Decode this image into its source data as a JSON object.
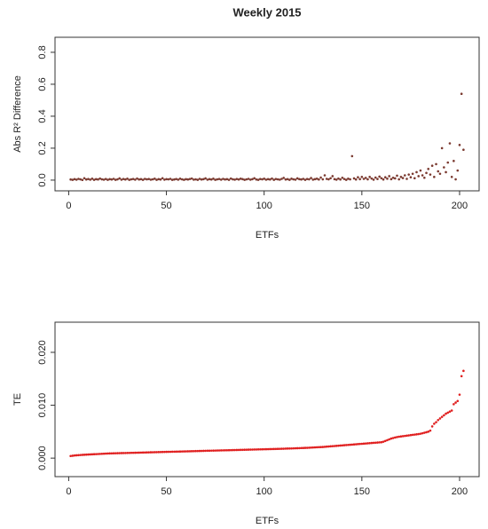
{
  "chart_data": [
    {
      "type": "scatter",
      "title": "Weekly 2015",
      "xlabel": "ETFs",
      "ylabel": "Abs R² Difference",
      "color": "#7b3a30",
      "xlim": [
        -7,
        210
      ],
      "ylim": [
        -0.067,
        0.894
      ],
      "xticks": [
        0,
        50,
        100,
        150,
        200
      ],
      "yticks": [
        {
          "value": 0,
          "label": "0.0"
        },
        {
          "value": 0.2,
          "label": "0.2"
        },
        {
          "value": 0.4,
          "label": "0.4"
        },
        {
          "value": 0.6,
          "label": "0.6"
        },
        {
          "value": 0.8,
          "label": "0.8"
        }
      ],
      "x": [
        1,
        2,
        3,
        4,
        5,
        6,
        7,
        8,
        9,
        10,
        11,
        12,
        13,
        14,
        15,
        16,
        17,
        18,
        19,
        20,
        21,
        22,
        23,
        24,
        25,
        26,
        27,
        28,
        29,
        30,
        31,
        32,
        33,
        34,
        35,
        36,
        37,
        38,
        39,
        40,
        41,
        42,
        43,
        44,
        45,
        46,
        47,
        48,
        49,
        50,
        51,
        52,
        53,
        54,
        55,
        56,
        57,
        58,
        59,
        60,
        61,
        62,
        63,
        64,
        65,
        66,
        67,
        68,
        69,
        70,
        71,
        72,
        73,
        74,
        75,
        76,
        77,
        78,
        79,
        80,
        81,
        82,
        83,
        84,
        85,
        86,
        87,
        88,
        89,
        90,
        91,
        92,
        93,
        94,
        95,
        96,
        97,
        98,
        99,
        100,
        101,
        102,
        103,
        104,
        105,
        106,
        107,
        108,
        109,
        110,
        111,
        112,
        113,
        114,
        115,
        116,
        117,
        118,
        119,
        120,
        121,
        122,
        123,
        124,
        125,
        126,
        127,
        128,
        129,
        130,
        131,
        132,
        133,
        134,
        135,
        136,
        137,
        138,
        139,
        140,
        141,
        142,
        143,
        144,
        145,
        146,
        147,
        148,
        149,
        150,
        151,
        152,
        153,
        154,
        155,
        156,
        157,
        158,
        159,
        160,
        161,
        162,
        163,
        164,
        165,
        166,
        167,
        168,
        169,
        170,
        171,
        172,
        173,
        174,
        175,
        176,
        177,
        178,
        179,
        180,
        181,
        182,
        183,
        184,
        185,
        186,
        187,
        188,
        189,
        190,
        191,
        192,
        193,
        194,
        195,
        196,
        197,
        198,
        199,
        200,
        201,
        202
      ],
      "values": [
        0.004,
        0.002,
        0.006,
        0.003,
        0.008,
        0.005,
        0.001,
        0.012,
        0.004,
        0.007,
        0.003,
        0.009,
        0.002,
        0.006,
        0.004,
        0.01,
        0.005,
        0.003,
        0.007,
        0.002,
        0.006,
        0.004,
        0.008,
        0.002,
        0.005,
        0.011,
        0.003,
        0.007,
        0.004,
        0.009,
        0.002,
        0.005,
        0.007,
        0.003,
        0.01,
        0.004,
        0.006,
        0.002,
        0.008,
        0.005,
        0.007,
        0.003,
        0.005,
        0.009,
        0.002,
        0.006,
        0.004,
        0.012,
        0.003,
        0.006,
        0.005,
        0.008,
        0.002,
        0.004,
        0.007,
        0.003,
        0.009,
        0.005,
        0.002,
        0.006,
        0.004,
        0.007,
        0.01,
        0.003,
        0.005,
        0.002,
        0.008,
        0.004,
        0.006,
        0.011,
        0.003,
        0.006,
        0.004,
        0.009,
        0.002,
        0.005,
        0.007,
        0.003,
        0.008,
        0.004,
        0.006,
        0.002,
        0.01,
        0.005,
        0.003,
        0.007,
        0.004,
        0.009,
        0.006,
        0.002,
        0.005,
        0.008,
        0.003,
        0.006,
        0.012,
        0.004,
        0.002,
        0.007,
        0.005,
        0.009,
        0.003,
        0.006,
        0.004,
        0.01,
        0.002,
        0.007,
        0.005,
        0.003,
        0.008,
        0.014,
        0.004,
        0.006,
        0.002,
        0.009,
        0.005,
        0.003,
        0.011,
        0.006,
        0.004,
        0.008,
        0.002,
        0.007,
        0.005,
        0.013,
        0.003,
        0.006,
        0.009,
        0.004,
        0.016,
        0.005,
        0.03,
        0.008,
        0.005,
        0.012,
        0.025,
        0.006,
        0.003,
        0.01,
        0.004,
        0.015,
        0.007,
        0.002,
        0.009,
        0.005,
        0.15,
        0.011,
        0.004,
        0.018,
        0.006,
        0.02,
        0.008,
        0.014,
        0.005,
        0.02,
        0.01,
        0.003,
        0.016,
        0.007,
        0.022,
        0.012,
        0.004,
        0.018,
        0.009,
        0.025,
        0.006,
        0.015,
        0.011,
        0.028,
        0.005,
        0.02,
        0.013,
        0.03,
        0.008,
        0.035,
        0.018,
        0.04,
        0.012,
        0.05,
        0.025,
        0.06,
        0.03,
        0.015,
        0.045,
        0.07,
        0.035,
        0.09,
        0.02,
        0.1,
        0.055,
        0.04,
        0.2,
        0.08,
        0.05,
        0.11,
        0.23,
        0.02,
        0.12,
        0.005,
        0.06,
        0.22,
        0.54,
        0.19
      ]
    },
    {
      "type": "scatter",
      "xlabel": "ETFs",
      "ylabel": "TE",
      "color": "#e02020",
      "xlim": [
        -7,
        210
      ],
      "ylim": [
        -0.0035,
        0.0257
      ],
      "xticks": [
        0,
        50,
        100,
        150,
        200
      ],
      "yticks": [
        {
          "value": 0,
          "label": "0.000"
        },
        {
          "value": 0.01,
          "label": "0.010"
        },
        {
          "value": 0.02,
          "label": "0.020"
        }
      ],
      "x": [
        1,
        2,
        3,
        4,
        5,
        6,
        7,
        8,
        9,
        10,
        11,
        12,
        13,
        14,
        15,
        16,
        17,
        18,
        19,
        20,
        21,
        22,
        23,
        24,
        25,
        26,
        27,
        28,
        29,
        30,
        31,
        32,
        33,
        34,
        35,
        36,
        37,
        38,
        39,
        40,
        41,
        42,
        43,
        44,
        45,
        46,
        47,
        48,
        49,
        50,
        51,
        52,
        53,
        54,
        55,
        56,
        57,
        58,
        59,
        60,
        61,
        62,
        63,
        64,
        65,
        66,
        67,
        68,
        69,
        70,
        71,
        72,
        73,
        74,
        75,
        76,
        77,
        78,
        79,
        80,
        81,
        82,
        83,
        84,
        85,
        86,
        87,
        88,
        89,
        90,
        91,
        92,
        93,
        94,
        95,
        96,
        97,
        98,
        99,
        100,
        101,
        102,
        103,
        104,
        105,
        106,
        107,
        108,
        109,
        110,
        111,
        112,
        113,
        114,
        115,
        116,
        117,
        118,
        119,
        120,
        121,
        122,
        123,
        124,
        125,
        126,
        127,
        128,
        129,
        130,
        131,
        132,
        133,
        134,
        135,
        136,
        137,
        138,
        139,
        140,
        141,
        142,
        143,
        144,
        145,
        146,
        147,
        148,
        149,
        150,
        151,
        152,
        153,
        154,
        155,
        156,
        157,
        158,
        159,
        160,
        161,
        162,
        163,
        164,
        165,
        166,
        167,
        168,
        169,
        170,
        171,
        172,
        173,
        174,
        175,
        176,
        177,
        178,
        179,
        180,
        181,
        182,
        183,
        184,
        185,
        186,
        187,
        188,
        189,
        190,
        191,
        192,
        193,
        194,
        195,
        196,
        197,
        198,
        199,
        200,
        201,
        202
      ],
      "values": [
        0.0004,
        0.00045,
        0.0005,
        0.00053,
        0.00056,
        0.00059,
        0.00062,
        0.00064,
        0.00066,
        0.00068,
        0.0007,
        0.00072,
        0.00074,
        0.00076,
        0.00078,
        0.0008,
        0.00082,
        0.00084,
        0.00086,
        0.00088,
        0.00089,
        0.0009,
        0.00091,
        0.00092,
        0.00093,
        0.00094,
        0.00095,
        0.00096,
        0.00097,
        0.00098,
        0.00099,
        0.001,
        0.00101,
        0.00102,
        0.00103,
        0.00104,
        0.00105,
        0.00106,
        0.00107,
        0.00108,
        0.00109,
        0.0011,
        0.00111,
        0.00112,
        0.00113,
        0.00114,
        0.00115,
        0.00116,
        0.00117,
        0.00118,
        0.00119,
        0.0012,
        0.00121,
        0.00122,
        0.00123,
        0.00124,
        0.00125,
        0.00126,
        0.00127,
        0.00128,
        0.00129,
        0.0013,
        0.00131,
        0.00132,
        0.00133,
        0.00134,
        0.00135,
        0.00136,
        0.00137,
        0.00138,
        0.00139,
        0.0014,
        0.00141,
        0.00142,
        0.00143,
        0.00144,
        0.00145,
        0.00146,
        0.00147,
        0.00148,
        0.00149,
        0.0015,
        0.00151,
        0.00152,
        0.00153,
        0.00154,
        0.00155,
        0.00156,
        0.00157,
        0.00158,
        0.00159,
        0.0016,
        0.00161,
        0.00162,
        0.00163,
        0.00164,
        0.00165,
        0.00166,
        0.00167,
        0.00168,
        0.00169,
        0.0017,
        0.00171,
        0.00172,
        0.00173,
        0.00174,
        0.00175,
        0.00176,
        0.00177,
        0.00178,
        0.0018,
        0.00181,
        0.00182,
        0.00183,
        0.00185,
        0.00186,
        0.00188,
        0.00189,
        0.00191,
        0.00192,
        0.00194,
        0.00195,
        0.00197,
        0.00199,
        0.00201,
        0.00203,
        0.00205,
        0.00207,
        0.00209,
        0.00211,
        0.00214,
        0.00217,
        0.0022,
        0.00223,
        0.00226,
        0.00229,
        0.00232,
        0.00235,
        0.00238,
        0.00241,
        0.00244,
        0.00247,
        0.0025,
        0.00253,
        0.00256,
        0.00259,
        0.00262,
        0.00265,
        0.00268,
        0.00271,
        0.00274,
        0.00277,
        0.0028,
        0.00283,
        0.00286,
        0.00289,
        0.00292,
        0.00295,
        0.00298,
        0.00301,
        0.0031,
        0.00325,
        0.0034,
        0.00355,
        0.0037,
        0.0038,
        0.0039,
        0.00398,
        0.00405,
        0.0041,
        0.00415,
        0.0042,
        0.00425,
        0.0043,
        0.00435,
        0.0044,
        0.00445,
        0.0045,
        0.00455,
        0.00462,
        0.0047,
        0.0048,
        0.0049,
        0.005,
        0.0052,
        0.006,
        0.0065,
        0.0068,
        0.0072,
        0.0075,
        0.0078,
        0.0081,
        0.0084,
        0.0086,
        0.0088,
        0.009,
        0.0102,
        0.0105,
        0.0108,
        0.012,
        0.0155,
        0.0165
      ]
    }
  ]
}
